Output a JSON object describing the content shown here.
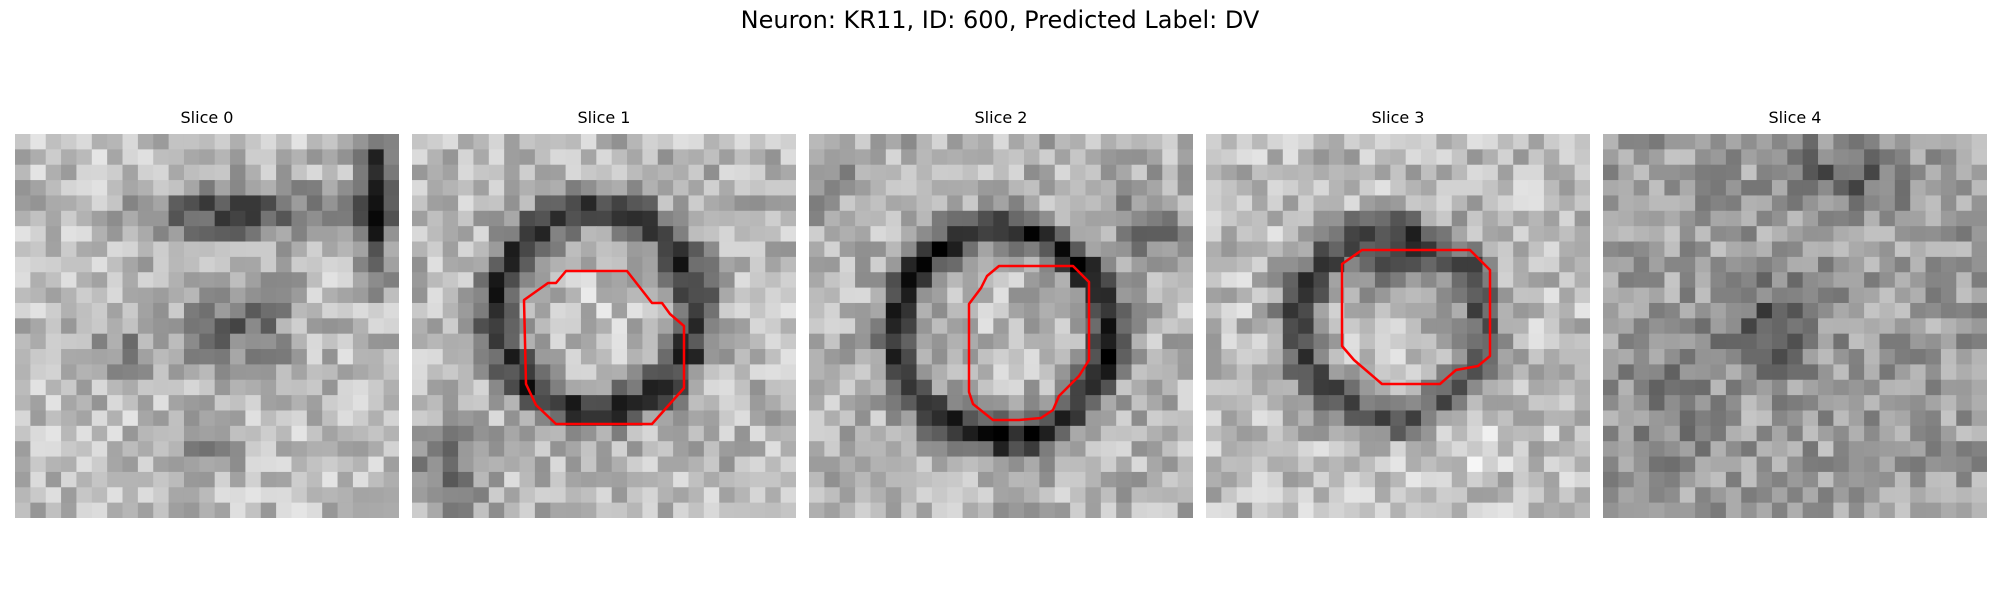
{
  "figure": {
    "title": "Neuron: KR11, ID: 600, Predicted Label: DV"
  },
  "panels": [
    {
      "title": "Slice 0",
      "has_contour": false
    },
    {
      "title": "Slice 1",
      "has_contour": true
    },
    {
      "title": "Slice 2",
      "has_contour": true
    },
    {
      "title": "Slice 3",
      "has_contour": true
    },
    {
      "title": "Slice 4",
      "has_contour": false
    }
  ],
  "colors": {
    "contour": "#ff0000",
    "background": "#ffffff"
  }
}
